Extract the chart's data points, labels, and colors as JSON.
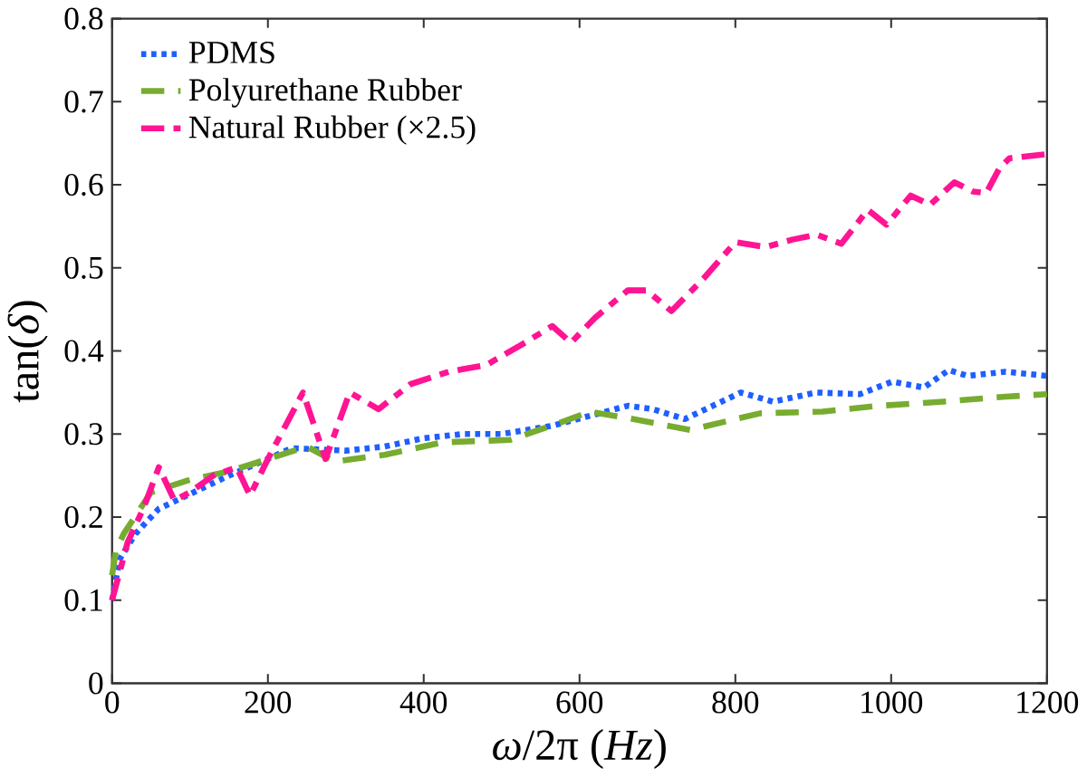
{
  "chart_data": {
    "type": "line",
    "xlabel": "*ω*/2π (*Hz*)",
    "ylabel": "tan(*δ*)",
    "xlim": [
      0,
      1200
    ],
    "ylim": [
      0,
      0.8
    ],
    "xticks": [
      0,
      200,
      400,
      600,
      800,
      1000,
      1200
    ],
    "yticks": [
      0,
      0.1,
      0.2,
      0.3,
      0.4,
      0.5,
      0.6,
      0.7,
      0.8
    ],
    "grid": false,
    "legend": "top left",
    "marker": "none",
    "series": [
      {
        "name": "PDMS",
        "color": "#1f5fff",
        "line_style": "dotted",
        "x": [
          0,
          10,
          30,
          60,
          87,
          150,
          200,
          230,
          300,
          350,
          400,
          450,
          500,
          565,
          662,
          694,
          735,
          807,
          848,
          904,
          960,
          1001,
          1042,
          1074,
          1098,
          1147,
          1200
        ],
        "values": [
          0.1,
          0.15,
          0.18,
          0.21,
          0.222,
          0.25,
          0.27,
          0.283,
          0.28,
          0.285,
          0.295,
          0.3,
          0.3,
          0.31,
          0.334,
          0.33,
          0.318,
          0.35,
          0.339,
          0.35,
          0.348,
          0.363,
          0.356,
          0.377,
          0.37,
          0.375,
          0.37
        ]
      },
      {
        "name": "Polyurethane Rubber",
        "color": "#77ac30",
        "line_style": "dashed",
        "x": [
          0,
          5,
          15,
          50,
          100,
          150,
          200,
          250,
          286,
          350,
          424,
          511,
          582,
          613,
          669,
          742,
          832,
          912,
          984,
          1067,
          1147,
          1200
        ],
        "values": [
          0.13,
          0.16,
          0.18,
          0.23,
          0.245,
          0.255,
          0.27,
          0.285,
          0.267,
          0.275,
          0.29,
          0.293,
          0.316,
          0.327,
          0.318,
          0.305,
          0.325,
          0.327,
          0.334,
          0.339,
          0.345,
          0.348
        ]
      },
      {
        "name": "Natural Rubber (×2.5)",
        "color": "#ff1493",
        "line_style": "dashdot",
        "x": [
          0,
          20,
          40,
          60,
          80,
          100,
          130,
          160,
          177,
          200,
          245,
          274,
          305,
          342,
          383,
          432,
          480,
          521,
          565,
          589,
          620,
          662,
          686,
          718,
          759,
          800,
          839,
          873,
          904,
          936,
          970,
          994,
          1025,
          1050,
          1081,
          1105,
          1122,
          1139,
          1152,
          1200
        ],
        "values": [
          0.1,
          0.17,
          0.21,
          0.26,
          0.22,
          0.23,
          0.25,
          0.26,
          0.226,
          0.27,
          0.35,
          0.27,
          0.35,
          0.33,
          0.36,
          0.375,
          0.383,
          0.405,
          0.43,
          0.41,
          0.44,
          0.473,
          0.473,
          0.448,
          0.487,
          0.531,
          0.525,
          0.534,
          0.54,
          0.529,
          0.57,
          0.552,
          0.587,
          0.576,
          0.603,
          0.592,
          0.59,
          0.62,
          0.632,
          0.637
        ]
      }
    ]
  }
}
